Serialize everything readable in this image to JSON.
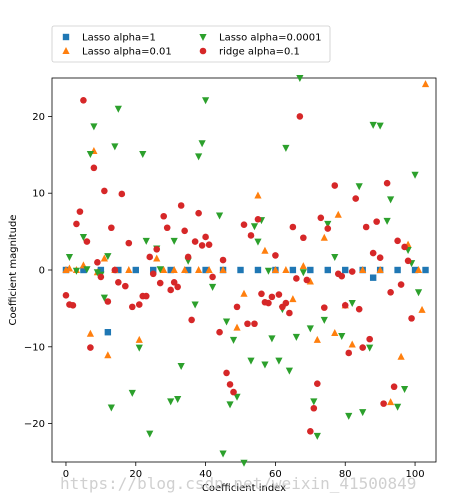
{
  "chart_data": {
    "type": "scatter",
    "title": "",
    "xlabel": "Coefficient index",
    "ylabel": "Coefficient magnitude",
    "xlim": [
      -4,
      106
    ],
    "ylim": [
      -25,
      25
    ],
    "xticks": [
      0,
      20,
      40,
      60,
      80,
      100
    ],
    "yticks": [
      -20,
      -10,
      0,
      10,
      20
    ],
    "grid": false,
    "legend_position": "top",
    "series": [
      {
        "name": "Lasso alpha=1",
        "marker": "square",
        "color": "#1f77b4",
        "points": [
          [
            0,
            0
          ],
          [
            5,
            0
          ],
          [
            10,
            0
          ],
          [
            12,
            -8.1
          ],
          [
            15,
            0
          ],
          [
            20,
            0
          ],
          [
            25,
            0
          ],
          [
            30,
            0
          ],
          [
            35,
            0
          ],
          [
            40,
            0
          ],
          [
            45,
            0
          ],
          [
            50,
            0
          ],
          [
            55,
            0
          ],
          [
            60,
            0
          ],
          [
            65,
            0
          ],
          [
            70,
            0
          ],
          [
            75,
            0
          ],
          [
            80,
            0
          ],
          [
            85,
            0
          ],
          [
            88,
            -1.0
          ],
          [
            90,
            0
          ],
          [
            95,
            0
          ],
          [
            100,
            0
          ],
          [
            103,
            0
          ]
        ]
      },
      {
        "name": "Lasso alpha=0.01",
        "marker": "triangle-up",
        "color": "#ff7f0e",
        "points": [
          [
            0,
            0
          ],
          [
            1,
            0.2
          ],
          [
            3,
            0
          ],
          [
            5,
            0.6
          ],
          [
            7,
            -8.3
          ],
          [
            8,
            15.5
          ],
          [
            9,
            -0.3
          ],
          [
            11,
            1.5
          ],
          [
            12,
            -11.1
          ],
          [
            14,
            0
          ],
          [
            18,
            0
          ],
          [
            21,
            -9.1
          ],
          [
            26,
            1.5
          ],
          [
            28,
            0
          ],
          [
            31,
            0
          ],
          [
            34,
            0
          ],
          [
            38,
            0
          ],
          [
            41,
            0
          ],
          [
            45,
            0
          ],
          [
            49,
            -7.5
          ],
          [
            51,
            -3.1
          ],
          [
            55,
            9.7
          ],
          [
            57,
            2.5
          ],
          [
            60,
            0
          ],
          [
            63,
            0
          ],
          [
            65,
            -3.8
          ],
          [
            68,
            0.5
          ],
          [
            70,
            -1.5
          ],
          [
            72,
            -9.1
          ],
          [
            74,
            4.2
          ],
          [
            77,
            -8.2
          ],
          [
            78,
            7.2
          ],
          [
            80,
            -4.6
          ],
          [
            82,
            -9.7
          ],
          [
            85,
            0
          ],
          [
            90,
            0
          ],
          [
            93,
            -17.2
          ],
          [
            96,
            -11.3
          ],
          [
            98,
            3.3
          ],
          [
            101,
            0
          ],
          [
            102,
            -5.2
          ],
          [
            103,
            24.2
          ]
        ]
      },
      {
        "name": "Lasso alpha=0.0001",
        "marker": "triangle-down",
        "color": "#2ca02c",
        "points": [
          [
            1,
            1.7
          ],
          [
            3,
            -0.1
          ],
          [
            5,
            4.3
          ],
          [
            6,
            0.1
          ],
          [
            7,
            15.1
          ],
          [
            8,
            18.7
          ],
          [
            9,
            -0.3
          ],
          [
            10,
            -0.6
          ],
          [
            11,
            -3.6
          ],
          [
            12,
            1.8
          ],
          [
            13,
            -17.9
          ],
          [
            14,
            16.1
          ],
          [
            15,
            21.0
          ],
          [
            19,
            -16.0
          ],
          [
            21,
            -10.1
          ],
          [
            22,
            15.1
          ],
          [
            23,
            3.8
          ],
          [
            24,
            -21.3
          ],
          [
            26,
            2.8
          ],
          [
            27,
            0.1
          ],
          [
            30,
            -17.1
          ],
          [
            31,
            3.8
          ],
          [
            32,
            -16.8
          ],
          [
            33,
            -12.5
          ],
          [
            35,
            1.2
          ],
          [
            37,
            -4.5
          ],
          [
            38,
            14.8
          ],
          [
            39,
            16.5
          ],
          [
            40,
            22.1
          ],
          [
            42,
            -2.2
          ],
          [
            44,
            7.1
          ],
          [
            45,
            -23.9
          ],
          [
            46,
            -6.7
          ],
          [
            47,
            -17.5
          ],
          [
            48,
            -9.1
          ],
          [
            49,
            -16.5
          ],
          [
            51,
            -25.1
          ],
          [
            53,
            -11.8
          ],
          [
            54,
            5.7
          ],
          [
            55,
            3.7
          ],
          [
            56,
            6.5
          ],
          [
            57,
            -12.3
          ],
          [
            58,
            -0.1
          ],
          [
            59,
            -8.9
          ],
          [
            61,
            -11.8
          ],
          [
            62,
            -5.1
          ],
          [
            63,
            15.9
          ],
          [
            64,
            -13.1
          ],
          [
            66,
            -8.7
          ],
          [
            67,
            25.0
          ],
          [
            68,
            -0.3
          ],
          [
            70,
            -7.6
          ],
          [
            71,
            -17.1
          ],
          [
            72,
            -21.6
          ],
          [
            74,
            -6.5
          ],
          [
            75,
            6.0
          ],
          [
            77,
            1.7
          ],
          [
            79,
            -8.6
          ],
          [
            81,
            -19.0
          ],
          [
            82,
            -4.3
          ],
          [
            84,
            10.9
          ],
          [
            85,
            -18.5
          ],
          [
            87,
            -10.1
          ],
          [
            88,
            18.9
          ],
          [
            90,
            18.8
          ],
          [
            92,
            6.4
          ],
          [
            93,
            9.2
          ],
          [
            95,
            -17.8
          ],
          [
            97,
            -15.5
          ],
          [
            98,
            2.6
          ],
          [
            99,
            0.9
          ],
          [
            100,
            12.4
          ],
          [
            101,
            -2.9
          ]
        ]
      },
      {
        "name": "ridge alpha=0.1",
        "marker": "circle",
        "color": "#d62728",
        "points": [
          [
            0,
            -3.3
          ],
          [
            1,
            -4.5
          ],
          [
            2,
            -4.6
          ],
          [
            3,
            6.0
          ],
          [
            4,
            7.6
          ],
          [
            5,
            22.1
          ],
          [
            6,
            3.7
          ],
          [
            7,
            -10.1
          ],
          [
            8,
            13.3
          ],
          [
            9,
            1.0
          ],
          [
            10,
            -0.9
          ],
          [
            11,
            10.3
          ],
          [
            12,
            -4.1
          ],
          [
            13,
            5.5
          ],
          [
            14,
            0
          ],
          [
            15,
            -1.6
          ],
          [
            16,
            9.9
          ],
          [
            17,
            -2.1
          ],
          [
            18,
            3.5
          ],
          [
            19,
            -4.8
          ],
          [
            21,
            -4.5
          ],
          [
            22,
            -3.4
          ],
          [
            23,
            -3.4
          ],
          [
            24,
            1.7
          ],
          [
            25,
            -0.5
          ],
          [
            26,
            2.7
          ],
          [
            27,
            -1.7
          ],
          [
            28,
            7.0
          ],
          [
            29,
            5.5
          ],
          [
            30,
            -2.6
          ],
          [
            31,
            -1.6
          ],
          [
            32,
            -2.2
          ],
          [
            33,
            8.4
          ],
          [
            34,
            5.1
          ],
          [
            35,
            1.7
          ],
          [
            36,
            -6.5
          ],
          [
            37,
            3.7
          ],
          [
            38,
            7.4
          ],
          [
            39,
            3.2
          ],
          [
            40,
            4.3
          ],
          [
            41,
            3.3
          ],
          [
            42,
            -0.9
          ],
          [
            44,
            -8.1
          ],
          [
            45,
            1.3
          ],
          [
            46,
            -13.4
          ],
          [
            47,
            -14.9
          ],
          [
            48,
            -15.9
          ],
          [
            49,
            -4.8
          ],
          [
            51,
            5.9
          ],
          [
            52,
            -7.0
          ],
          [
            53,
            4.5
          ],
          [
            54,
            -7.0
          ],
          [
            55,
            6.6
          ],
          [
            56,
            -3.1
          ],
          [
            57,
            -4.2
          ],
          [
            58,
            -4.3
          ],
          [
            59,
            -3.5
          ],
          [
            60,
            1.9
          ],
          [
            61,
            -3.2
          ],
          [
            62,
            -4.8
          ],
          [
            63,
            -4.3
          ],
          [
            64,
            -5.6
          ],
          [
            65,
            5.6
          ],
          [
            66,
            -1.1
          ],
          [
            67,
            20.0
          ],
          [
            68,
            4.2
          ],
          [
            69,
            -1.3
          ],
          [
            70,
            -21.0
          ],
          [
            71,
            -18.0
          ],
          [
            72,
            -14.8
          ],
          [
            73,
            6.8
          ],
          [
            74,
            -4.9
          ],
          [
            75,
            5.4
          ],
          [
            77,
            11.0
          ],
          [
            78,
            -0.5
          ],
          [
            79,
            -0.8
          ],
          [
            80,
            -4.6
          ],
          [
            81,
            -10.8
          ],
          [
            82,
            -0.2
          ],
          [
            83,
            9.3
          ],
          [
            84,
            -5.1
          ],
          [
            85,
            -10.1
          ],
          [
            86,
            5.6
          ],
          [
            87,
            -9.0
          ],
          [
            88,
            2.2
          ],
          [
            89,
            6.3
          ],
          [
            90,
            1.6
          ],
          [
            91,
            -17.4
          ],
          [
            92,
            11.3
          ],
          [
            93,
            -2.9
          ],
          [
            94,
            -15.2
          ],
          [
            95,
            3.8
          ],
          [
            96,
            -1.9
          ],
          [
            97,
            3.0
          ],
          [
            98,
            1.2
          ],
          [
            99,
            -6.3
          ]
        ]
      }
    ]
  },
  "watermark": "https://blog.csdn.net/weixin_41500849"
}
